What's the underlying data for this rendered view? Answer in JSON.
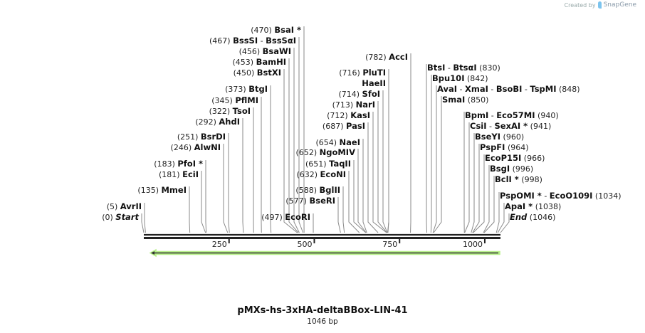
{
  "credit": {
    "prefix": "Created by",
    "brand": "SnapGene"
  },
  "title": "pMXs-hs-3xHA-deltaBBox-LIN-41",
  "length": "1046 bp",
  "colors": {
    "feature_fill": "#b8f08a",
    "feature_stroke": "#333333",
    "backbone": "#222222"
  },
  "ruler": {
    "max": 1046,
    "ticks": [
      250,
      500,
      750,
      1000
    ]
  },
  "feature": {
    "direction": "reverse",
    "start": 0,
    "end": 1046
  },
  "sites": [
    {
      "pos": 470,
      "names": [
        "BsaI *"
      ]
    },
    {
      "pos": 467,
      "names": [
        "BssSI",
        "BssSαI"
      ]
    },
    {
      "pos": 456,
      "names": [
        "BsaWI"
      ]
    },
    {
      "pos": 453,
      "names": [
        "BamHI"
      ]
    },
    {
      "pos": 450,
      "names": [
        "BstXI"
      ]
    },
    {
      "pos": 373,
      "names": [
        "BtgI"
      ]
    },
    {
      "pos": 345,
      "names": [
        "PflMI"
      ]
    },
    {
      "pos": 322,
      "names": [
        "TsoI"
      ]
    },
    {
      "pos": 292,
      "names": [
        "AhdI"
      ]
    },
    {
      "pos": 251,
      "names": [
        "BsrDI"
      ]
    },
    {
      "pos": 246,
      "names": [
        "AlwNI"
      ]
    },
    {
      "pos": 183,
      "names": [
        "PfoI *"
      ]
    },
    {
      "pos": 181,
      "names": [
        "EciI"
      ]
    },
    {
      "pos": 135,
      "names": [
        "MmeI"
      ]
    },
    {
      "pos": 5,
      "names": [
        "AvrII"
      ]
    },
    {
      "pos": 0,
      "names": [
        "Start"
      ],
      "italic": true
    },
    {
      "pos": 497,
      "names": [
        "EcoRI"
      ]
    },
    {
      "pos": 577,
      "names": [
        "BseRI"
      ]
    },
    {
      "pos": 588,
      "names": [
        "BglII"
      ]
    },
    {
      "pos": 632,
      "names": [
        "EcoNI"
      ]
    },
    {
      "pos": 651,
      "names": [
        "TaqII"
      ]
    },
    {
      "pos": 652,
      "names": [
        "NgoMIV"
      ]
    },
    {
      "pos": 654,
      "names": [
        "NaeI"
      ]
    },
    {
      "pos": 687,
      "names": [
        "PasI"
      ]
    },
    {
      "pos": 712,
      "names": [
        "KasI"
      ]
    },
    {
      "pos": 713,
      "names": [
        "NarI"
      ]
    },
    {
      "pos": 714,
      "names": [
        "SfoI"
      ]
    },
    {
      "pos": null,
      "names": [
        "HaeII"
      ]
    },
    {
      "pos": 716,
      "names": [
        "PluTI"
      ]
    },
    {
      "pos": 782,
      "names": [
        "AccI"
      ]
    },
    {
      "pos": 830,
      "names": [
        "BtsI",
        "BtsαI"
      ]
    },
    {
      "pos": 842,
      "names": [
        "Bpu10I"
      ]
    },
    {
      "pos": 848,
      "names": [
        "AvaI",
        "XmaI",
        "BsoBI",
        "TspMI"
      ]
    },
    {
      "pos": 850,
      "names": [
        "SmaI"
      ]
    },
    {
      "pos": 940,
      "names": [
        "BpmI",
        "Eco57MI"
      ]
    },
    {
      "pos": 941,
      "names": [
        "CsiI",
        "SexAI *"
      ]
    },
    {
      "pos": 960,
      "names": [
        "BseYI"
      ]
    },
    {
      "pos": 964,
      "names": [
        "PspFI"
      ]
    },
    {
      "pos": 966,
      "names": [
        "EcoP15I"
      ]
    },
    {
      "pos": 996,
      "names": [
        "BsgI"
      ]
    },
    {
      "pos": 998,
      "names": [
        "BclI *"
      ]
    },
    {
      "pos": 1034,
      "names": [
        "PspOMI *",
        "EcoO109I"
      ]
    },
    {
      "pos": 1038,
      "names": [
        "ApaI *"
      ]
    },
    {
      "pos": 1046,
      "names": [
        "End"
      ],
      "italic": true
    }
  ]
}
